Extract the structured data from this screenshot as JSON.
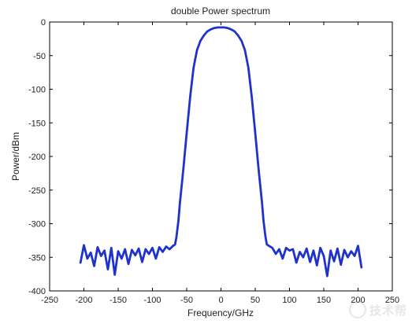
{
  "chart_data": {
    "type": "line",
    "title": "double Power spectrum",
    "xlabel": "Frequency/GHz",
    "ylabel": "Power/dBm",
    "xlim": [
      -250,
      250
    ],
    "ylim": [
      -400,
      0
    ],
    "xticks": [
      -250,
      -200,
      -150,
      -100,
      -50,
      0,
      50,
      100,
      150,
      200,
      250
    ],
    "yticks": [
      0,
      -50,
      -100,
      -150,
      -200,
      -250,
      -300,
      -350,
      -400
    ],
    "grid": false,
    "legend": "none",
    "series_color": "#1f33cc",
    "series": [
      {
        "x": [
          -205,
          -200,
          -195,
          -190,
          -185,
          -180,
          -175,
          -170,
          -165,
          -160,
          -155,
          -150,
          -145,
          -140,
          -135,
          -130,
          -125,
          -120,
          -115,
          -110,
          -105,
          -100,
          -95,
          -90,
          -85,
          -80,
          -75,
          -70,
          -67,
          -65,
          -62,
          -60,
          -55,
          -50,
          -45,
          -40,
          -35,
          -30,
          -25,
          -20,
          -15,
          -10,
          -5,
          0,
          5,
          10,
          15,
          20,
          25,
          30,
          35,
          40,
          45,
          50,
          55,
          60,
          62,
          65,
          67,
          70,
          75,
          80,
          85,
          90,
          95,
          100,
          105,
          110,
          115,
          120,
          125,
          130,
          135,
          140,
          145,
          150,
          155,
          160,
          165,
          170,
          175,
          180,
          185,
          190,
          195,
          200,
          205
        ],
        "y": [
          -358,
          -332,
          -352,
          -343,
          -363,
          -335,
          -348,
          -340,
          -368,
          -336,
          -376,
          -341,
          -352,
          -338,
          -360,
          -339,
          -347,
          -337,
          -357,
          -338,
          -345,
          -336,
          -352,
          -335,
          -342,
          -334,
          -338,
          -333,
          -331,
          -320,
          -295,
          -270,
          -220,
          -165,
          -112,
          -68,
          -42,
          -28,
          -20,
          -14,
          -11,
          -9,
          -8,
          -8,
          -8,
          -9,
          -11,
          -14,
          -20,
          -28,
          -42,
          -68,
          -112,
          -165,
          -220,
          -270,
          -295,
          -320,
          -331,
          -333,
          -336,
          -345,
          -338,
          -352,
          -336,
          -340,
          -338,
          -358,
          -342,
          -350,
          -337,
          -357,
          -340,
          -362,
          -336,
          -348,
          -378,
          -340,
          -356,
          -337,
          -361,
          -339,
          -350,
          -341,
          -348,
          -333,
          -365
        ]
      }
    ]
  },
  "watermark": {
    "text": "技术帮"
  }
}
